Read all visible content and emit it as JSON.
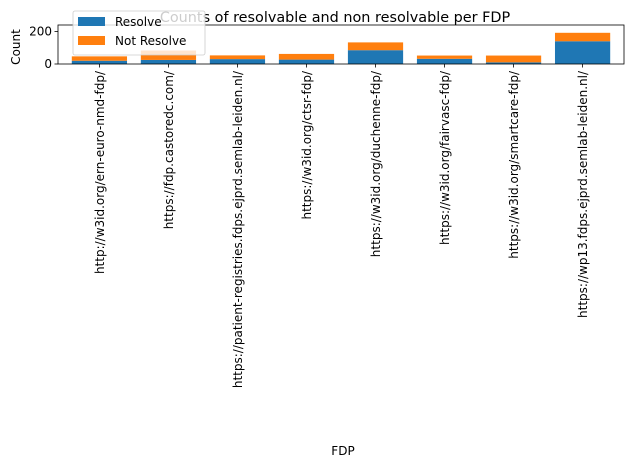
{
  "chart_data": {
    "type": "bar",
    "stacked": true,
    "title": "Counts of resolvable and non resolvable per FDP",
    "xlabel": "FDP",
    "ylabel": "Count",
    "ylim": [
      0,
      240
    ],
    "yticks": [
      0,
      200
    ],
    "categories": [
      "http://w3id.org/ern-euro-nmd-fdp/",
      "https://fdp.castoredc.com/",
      "https://patient-registries.fdps.ejprd.semlab-leiden.nl/",
      "https://w3id.org/ctsr-fdp/",
      "https://w3id.org/duchenne-fdp/",
      "https://w3id.org/fairvasc-fdp/",
      "https://w3id.org/smartcare-fdp/",
      "https://wp13.fdps.ejprd.semlab-leiden.nl/"
    ],
    "series": [
      {
        "name": "Resolve",
        "color": "#1f77b4",
        "values": [
          20,
          25,
          30,
          27,
          85,
          32,
          10,
          140
        ]
      },
      {
        "name": "Not Resolve",
        "color": "#ff7f0e",
        "values": [
          27,
          58,
          23,
          35,
          48,
          20,
          42,
          52
        ]
      }
    ],
    "legend": {
      "placement": "upper-left"
    },
    "grid": false
  }
}
